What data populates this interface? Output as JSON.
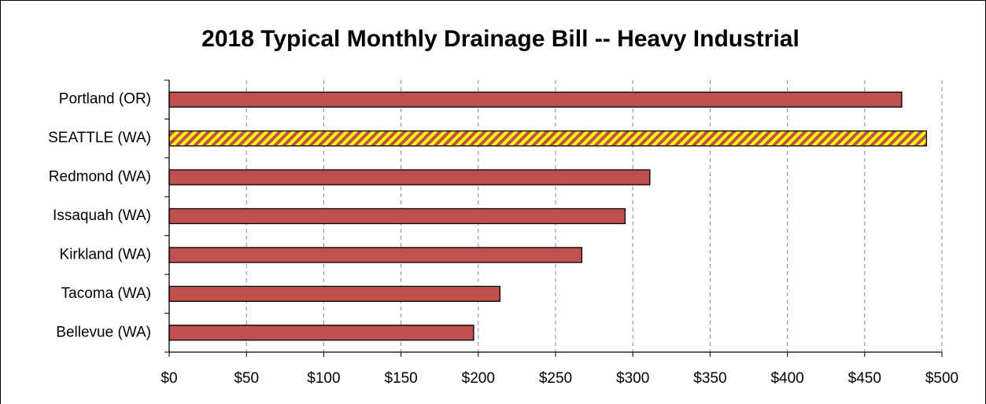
{
  "chart_data": {
    "type": "hbar",
    "title": "2018 Typical Monthly Drainage Bill -- Heavy Industrial",
    "categories": [
      "Portland (OR)",
      "SEATTLE (WA)",
      "Redmond (WA)",
      "Issaquah (WA)",
      "Kirkland (WA)",
      "Tacoma (WA)",
      "Bellevue (WA)"
    ],
    "values": [
      474,
      490,
      311,
      295,
      267,
      214,
      197
    ],
    "color": "#c0504d",
    "highlight": "SEATTLE (WA)",
    "highlight_color": "#ffff00",
    "xlim": [
      0,
      500
    ],
    "xticks": [
      {
        "value": 0,
        "label": "$0"
      },
      {
        "value": 50,
        "label": "$50"
      },
      {
        "value": 100,
        "label": "$100"
      },
      {
        "value": 150,
        "label": "$150"
      },
      {
        "value": 200,
        "label": "$200"
      },
      {
        "value": 250,
        "label": "$250"
      },
      {
        "value": 300,
        "label": "$300"
      },
      {
        "value": 350,
        "label": "$350"
      },
      {
        "value": 400,
        "label": "$400"
      },
      {
        "value": 450,
        "label": "$450"
      },
      {
        "value": 500,
        "label": "$500"
      }
    ],
    "grid": true
  }
}
